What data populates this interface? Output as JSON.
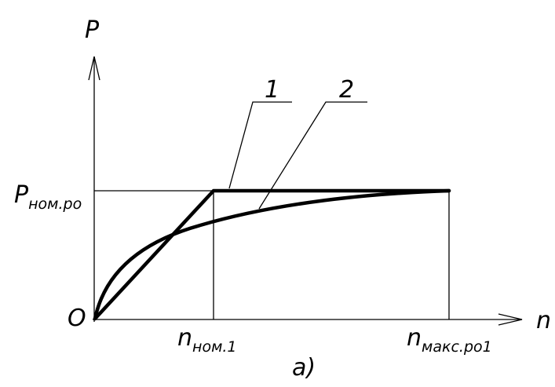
{
  "axes": {
    "y_label": "P",
    "x_label": "n",
    "origin": "O"
  },
  "levels": {
    "p_nom": {
      "main": "P",
      "sub": "ном.ро"
    }
  },
  "x_marks": [
    {
      "main": "n",
      "sub": "ном.1"
    },
    {
      "main": "n",
      "sub": "макс.ро1"
    }
  ],
  "curves": [
    {
      "label": "1"
    },
    {
      "label": "2"
    }
  ],
  "caption": "а)"
}
